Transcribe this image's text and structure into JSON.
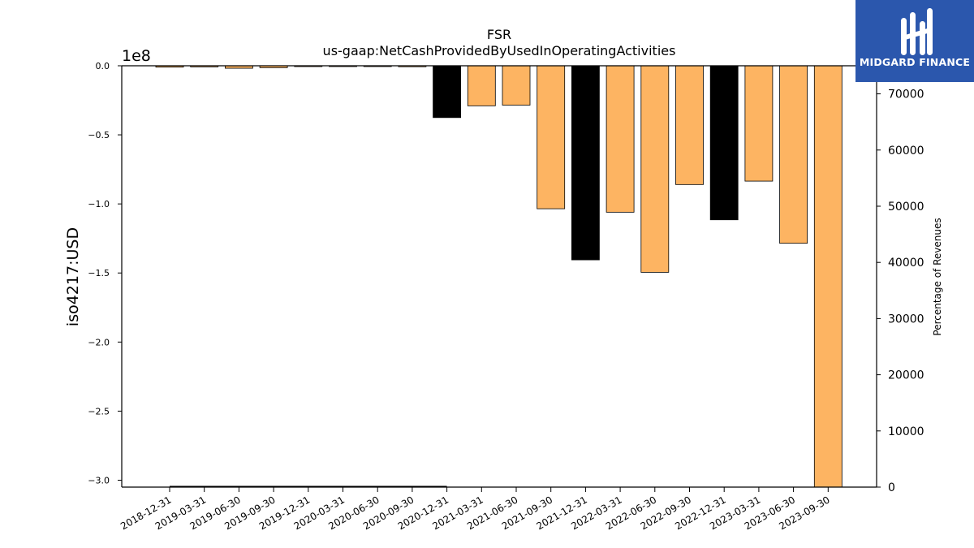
{
  "chart_data": {
    "type": "bar",
    "title": "FSR",
    "subtitle": "us-gaap:NetCashProvidedByUsedInOperatingActivities",
    "ylabel": "iso4217:USD",
    "y_offset_label": "1e8",
    "y2label": "Percentage of Revenues",
    "ylim": [
      -3.05,
      0.0
    ],
    "y2lim": [
      0,
      75000
    ],
    "y_scale": 100000000,
    "yticks": [
      0.0,
      -0.5,
      -1.0,
      -1.5,
      -2.0,
      -2.5,
      -3.0
    ],
    "ytick_labels": [
      "0.0",
      "−0.5",
      "−1.0",
      "−1.5",
      "−2.0",
      "−2.5",
      "−3.0"
    ],
    "y2ticks": [
      0,
      10000,
      20000,
      30000,
      40000,
      50000,
      60000,
      70000
    ],
    "y2tick_labels": [
      "0",
      "10000",
      "20000",
      "30000",
      "40000",
      "50000",
      "60000",
      "70000"
    ],
    "categories": [
      "2018-12-31",
      "2019-03-31",
      "2019-06-30",
      "2019-09-30",
      "2019-12-31",
      "2020-03-31",
      "2020-06-30",
      "2020-09-30",
      "2020-12-31",
      "2021-03-31",
      "2021-06-30",
      "2021-09-30",
      "2021-12-31",
      "2022-03-31",
      "2022-06-30",
      "2022-09-30",
      "2022-12-31",
      "2023-03-31",
      "2023-06-30",
      "2023-09-30"
    ],
    "values": [
      -0.01,
      -0.008,
      -0.018,
      -0.014,
      -0.006,
      -0.002,
      -0.002,
      -0.007,
      -0.375,
      -0.29,
      -0.285,
      -1.035,
      -1.405,
      -1.06,
      -1.495,
      -0.86,
      -1.115,
      -0.835,
      -1.285,
      -3.06
    ],
    "bar_colors": [
      "#fdb462",
      "#fdb462",
      "#fdb462",
      "#fdb462",
      "#fdb462",
      "#fdb462",
      "#fdb462",
      "#fdb462",
      "#000000",
      "#fdb462",
      "#fdb462",
      "#fdb462",
      "#000000",
      "#fdb462",
      "#fdb462",
      "#fdb462",
      "#000000",
      "#fdb462",
      "#fdb462",
      "#fdb462"
    ],
    "percentage_line": {
      "categories": [
        "2018-12-31",
        "2019-03-31",
        "2019-06-30",
        "2019-09-30",
        "2019-12-31",
        "2020-03-31",
        "2020-06-30",
        "2020-09-30",
        "2020-12-31"
      ],
      "values": [
        0,
        0,
        0,
        0,
        0,
        0,
        0,
        0,
        0
      ],
      "color": "#000000"
    },
    "grid": false,
    "legend": "none"
  },
  "logo": {
    "text": "MIDGARD FINANCE",
    "background": "#2b57ad",
    "text_color": "#ffffff"
  }
}
